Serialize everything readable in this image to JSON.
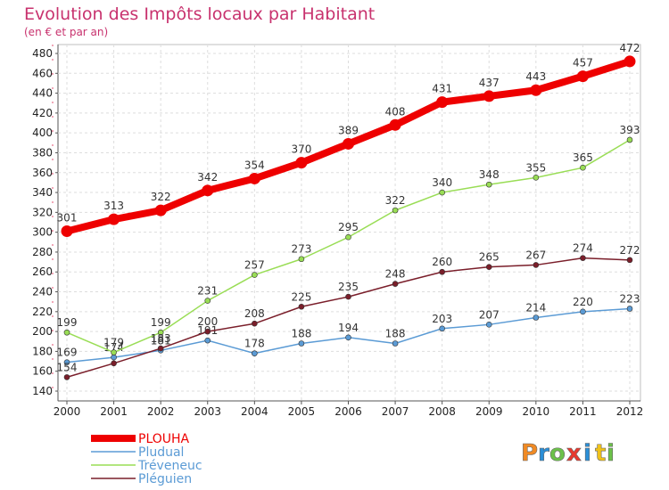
{
  "chart_data": {
    "type": "line",
    "title": "Evolution des Impôts locaux par Habitant",
    "subtitle": "(en € et par an)",
    "xlabel": "",
    "ylabel": "",
    "x": [
      "2000",
      "2001",
      "2002",
      "2003",
      "2004",
      "2005",
      "2006",
      "2007",
      "2008",
      "2009",
      "2010",
      "2011",
      "2012"
    ],
    "ylim": [
      140,
      480
    ],
    "yticks": [
      140,
      160,
      180,
      200,
      220,
      240,
      260,
      280,
      300,
      320,
      340,
      360,
      380,
      400,
      420,
      440,
      460,
      480
    ],
    "grid": true,
    "legend_position": "bottom-left",
    "series": [
      {
        "name": "PLOUHA",
        "color": "#ee0000",
        "values": [
          301,
          313,
          322,
          342,
          354,
          370,
          389,
          408,
          431,
          437,
          443,
          457,
          472
        ],
        "labels": [
          "301",
          "313",
          "322",
          "342",
          "354",
          "370",
          "389",
          "408",
          "431",
          "437",
          "443",
          "457",
          "472"
        ]
      },
      {
        "name": "Pludual",
        "color": "#5b9bd5",
        "values": [
          169,
          174,
          181,
          191,
          178,
          188,
          194,
          188,
          203,
          207,
          214,
          220,
          223
        ],
        "labels": [
          "169",
          "174",
          "181",
          "191",
          "178",
          "188",
          "194",
          "188",
          "203",
          "207",
          "214",
          "220",
          "223"
        ]
      },
      {
        "name": "Tréveneuc",
        "color": "#99dd55",
        "values": [
          199,
          179,
          199,
          231,
          257,
          273,
          295,
          322,
          340,
          348,
          355,
          365,
          393
        ],
        "labels": [
          "199",
          "179",
          "199",
          "231",
          "257",
          "273",
          "295",
          "322",
          "340",
          "348",
          "355",
          "365",
          "393"
        ]
      },
      {
        "name": "Pléguien",
        "color": "#7a1e2a",
        "values": [
          154,
          168,
          183,
          200,
          208,
          225,
          235,
          248,
          260,
          265,
          267,
          274,
          272
        ],
        "labels": [
          "154",
          "",
          "183",
          "200",
          "208",
          "225",
          "235",
          "248",
          "260",
          "265",
          "267",
          "274",
          "272"
        ]
      }
    ]
  },
  "branding": {
    "logo": "Proxiti"
  }
}
